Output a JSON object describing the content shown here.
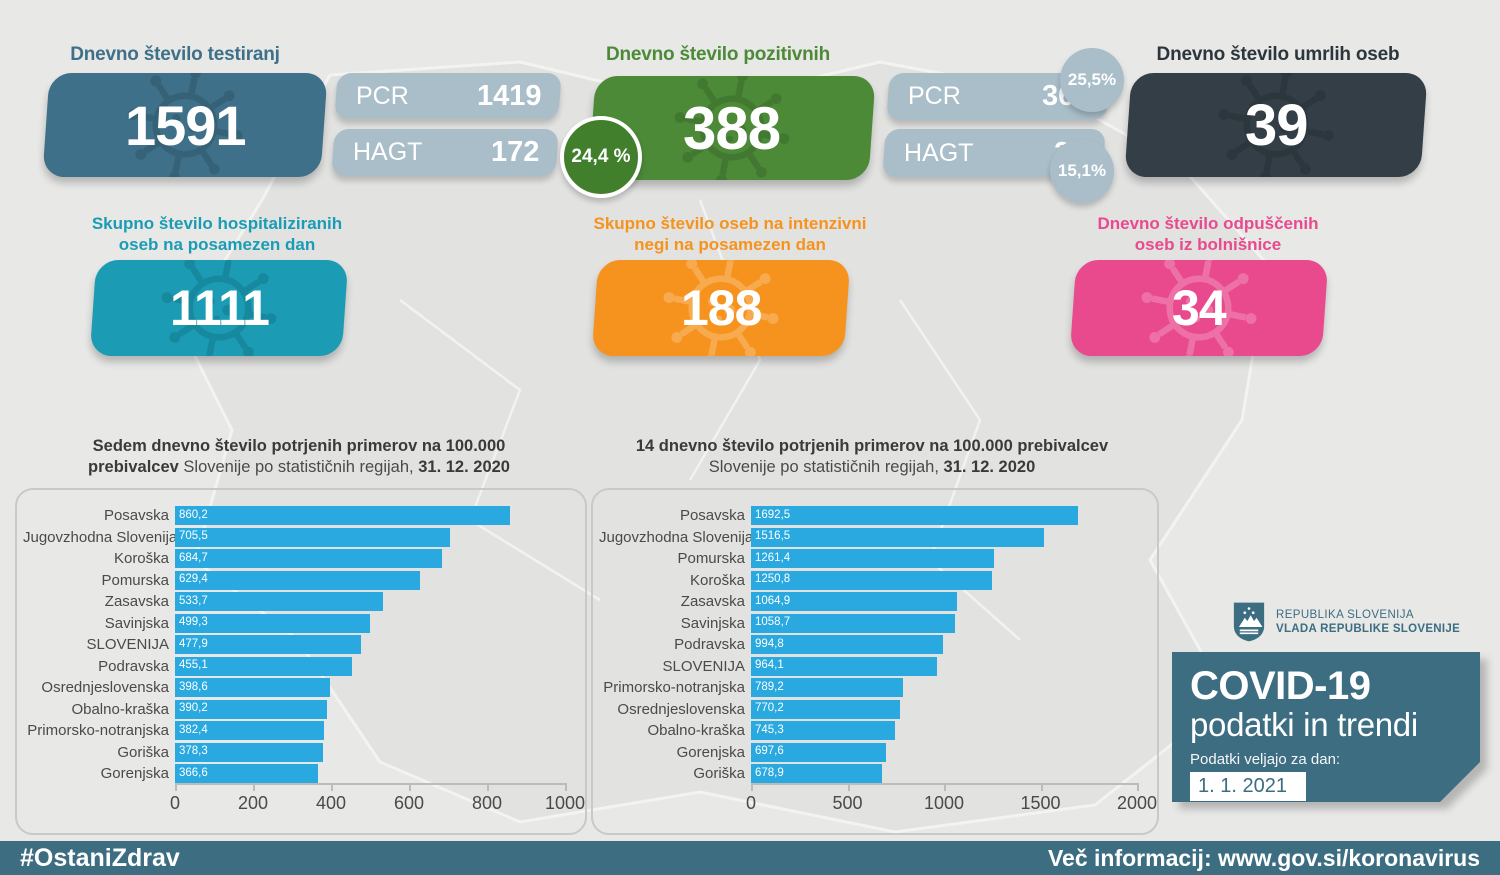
{
  "page": {
    "background": "#e8e8e7",
    "accent_footer": "#3c6d81",
    "bar_blue": "#29a9e0"
  },
  "icons": {
    "panel_watermark": "virus-icon",
    "logo": "slovenia-coat-of-arms-shield-icon"
  },
  "stats": {
    "tests": {
      "title": "Dnevno število testiranj",
      "value": "1591",
      "color": "#3e7089",
      "sub": [
        {
          "label": "PCR",
          "value": "1419"
        },
        {
          "label": "HAGT",
          "value": "172"
        }
      ]
    },
    "positive": {
      "title": "Dnevno število pozitivnih",
      "value": "388",
      "share": "24,4 %",
      "color": "#4c8a38",
      "circle_color": "#417f2c",
      "sub": [
        {
          "label": "PCR",
          "value": "362",
          "share": "25,5%"
        },
        {
          "label": "HAGT",
          "value": "26",
          "share": "15,1%"
        }
      ]
    },
    "deaths": {
      "title": "Dnevno število umrlih oseb",
      "value": "39",
      "color": "#333e46"
    },
    "hospitalized": {
      "title_line1": "Skupno število hospitaliziranih",
      "title_line2": "oseb na posamezen dan",
      "value": "1111",
      "color": "#1b9cb4"
    },
    "icu": {
      "title_line1": "Skupno število oseb na intenzivni",
      "title_line2": "negi na posamezen dan",
      "value": "188",
      "color": "#f6921e"
    },
    "discharged": {
      "title_line1": "Dnevno število odpuščenih",
      "title_line2": "oseb iz bolnišnice",
      "value": "34",
      "color": "#e84a8d"
    }
  },
  "chart_data": [
    {
      "type": "bar",
      "orientation": "horizontal",
      "title": {
        "line1": "Sedem dnevno število potrjenih primerov na 100.000",
        "line2_bold_prefix": "prebivalcev",
        "line2_regular": " Slovenije po statističnih regijah, ",
        "line2_date": "31. 12. 2020"
      },
      "categories": [
        "Posavska",
        "Jugovzhodna Slovenija",
        "Koroška",
        "Pomurska",
        "Zasavska",
        "Savinjska",
        "SLOVENIJA",
        "Podravska",
        "Osrednjeslovenska",
        "Obalno-kraška",
        "Primorsko-notranjska",
        "Goriška",
        "Gorenjska"
      ],
      "values": [
        860.2,
        705.5,
        684.7,
        629.4,
        533.7,
        499.3,
        477.9,
        455.1,
        398.6,
        390.2,
        382.4,
        378.3,
        366.6
      ],
      "value_labels": [
        "860,2",
        "705,5",
        "684,7",
        "629,4",
        "533,7",
        "499,3",
        "477,9",
        "455,1",
        "398,6",
        "390,2",
        "382,4",
        "378,3",
        "366,6"
      ],
      "xlim": [
        0,
        1000
      ],
      "xticks": [
        0,
        200,
        400,
        600,
        800,
        1000
      ],
      "bar_color": "#29a9e0",
      "grid": false,
      "legend": "none"
    },
    {
      "type": "bar",
      "orientation": "horizontal",
      "title": {
        "line1": "14 dnevno število potrjenih primerov na 100.000 prebivalcev",
        "line2_bold_prefix": "",
        "line2_regular": "Slovenije po statističnih regijah, ",
        "line2_date": "31. 12. 2020"
      },
      "categories": [
        "Posavska",
        "Jugovzhodna Slovenija",
        "Pomurska",
        "Koroška",
        "Zasavska",
        "Savinjska",
        "Podravska",
        "SLOVENIJA",
        "Primorsko-notranjska",
        "Osrednjeslovenska",
        "Obalno-kraška",
        "Gorenjska",
        "Goriška"
      ],
      "values": [
        1692.5,
        1516.5,
        1261.4,
        1250.8,
        1064.9,
        1058.7,
        994.8,
        964.1,
        789.2,
        770.2,
        745.3,
        697.6,
        678.9
      ],
      "value_labels": [
        "1692,5",
        "1516,5",
        "1261,4",
        "1250,8",
        "1064,9",
        "1058,7",
        "994,8",
        "964,1",
        "789,2",
        "770,2",
        "745,3",
        "697,6",
        "678,9"
      ],
      "xlim": [
        0,
        2000
      ],
      "xticks": [
        0,
        500,
        1000,
        1500,
        2000
      ],
      "bar_color": "#29a9e0",
      "grid": false,
      "legend": "none"
    }
  ],
  "branding": {
    "gov_line1": "REPUBLIKA SLOVENIJA",
    "gov_line2": "VLADA REPUBLIKE SLOVENIJE",
    "box_title": "COVID-19",
    "box_subtitle": "podatki in trendi",
    "box_note": "Podatki veljajo za dan:",
    "box_date": "1. 1. 2021"
  },
  "footer": {
    "hashtag": "#OstaniZdrav",
    "info": "Več informacij: www.gov.si/koronavirus"
  }
}
